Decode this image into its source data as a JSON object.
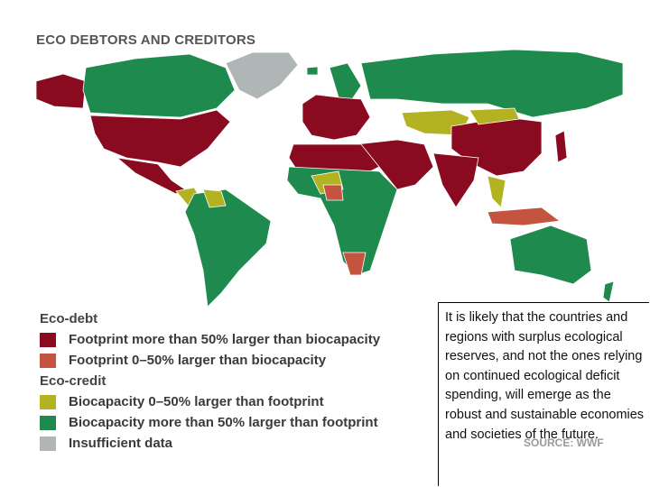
{
  "header": {
    "title": "ECO DEBTORS AND CREDITORS"
  },
  "legend": {
    "groups": [
      {
        "label": "Eco-debt",
        "items": [
          {
            "label": "Footprint more than 50% larger than biocapacity",
            "color": "#8a0b1f"
          },
          {
            "label": "Footprint 0–50% larger than biocapacity",
            "color": "#c4533f"
          }
        ]
      },
      {
        "label": "Eco-credit",
        "items": [
          {
            "label": "Biocapacity 0–50% larger than footprint",
            "color": "#b3b322"
          },
          {
            "label": "Biocapacity more than 50% larger than footprint",
            "color": "#1e8a4d"
          },
          {
            "label": "Insufficient data",
            "color": "#b0b6b6"
          }
        ]
      }
    ]
  },
  "source": "SOURCE: WWF",
  "note": "It is likely that the countries and regions with surplus ecological reserves, and not the ones relying on continued ecological deficit spending, will emerge as the robust and sustainable economies and societies of the future."
}
